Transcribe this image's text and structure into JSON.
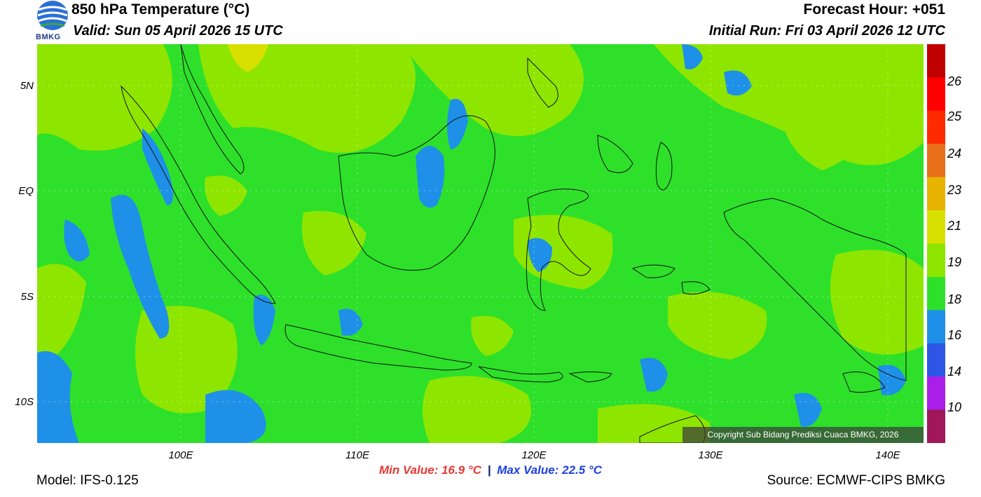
{
  "header": {
    "title": "850 hPa Temperature (°C)",
    "valid": "Valid: Sun 05 April 2026 15 UTC",
    "forecast_hour": "Forecast Hour: +051",
    "initial_run": "Initial Run: Fri 03 April 2026 12 UTC",
    "logo_text": "BMKG"
  },
  "axes": {
    "lat_labels": [
      "5N",
      "EQ",
      "5S",
      "10S"
    ],
    "lon_labels": [
      "100E",
      "110E",
      "120E",
      "130E",
      "140E"
    ]
  },
  "colorbar": {
    "labels": [
      "26",
      "25",
      "24",
      "23",
      "21",
      "19",
      "18",
      "16",
      "14",
      "10"
    ],
    "colors": [
      "#c00000",
      "#ff0000",
      "#ff2a00",
      "#e8701a",
      "#e6b400",
      "#d8e000",
      "#8ee600",
      "#2ee02a",
      "#1e90e8",
      "#2d55e6",
      "#aa1fe8",
      "#a0175a"
    ]
  },
  "map": {
    "field_colors": {
      "light_green": "#8ee600",
      "green": "#2ee02a",
      "blue": "#1e90e8",
      "yellow": "#d8e000"
    },
    "copyright": "Copyright Sub Bidang Prediksi Cuaca BMKG, 2026"
  },
  "footer": {
    "min_value": "Min Value: 16.9 °C",
    "separator": "|",
    "max_value": "Max Value: 22.5 °C",
    "model": "Model: IFS-0.125",
    "source": "Source: ECMWF-CIPS BMKG"
  }
}
